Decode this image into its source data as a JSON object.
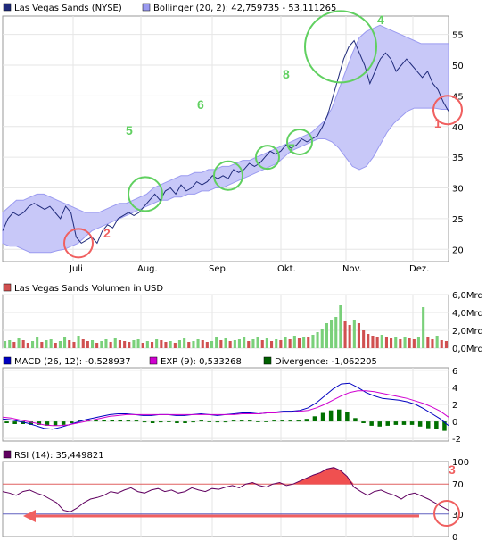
{
  "chart_data": [
    {
      "type": "line",
      "legend": [
        {
          "name": "Las Vegas Sands (NYSE)",
          "color": "#1f2a7a"
        },
        {
          "name": "Bollinger (20, 2): 42,759735 - 53,111265",
          "color": "#9a9af0"
        }
      ],
      "x_tick_labels": [
        "Juli",
        "Aug.",
        "Sep.",
        "Okt.",
        "Nov.",
        "Dez."
      ],
      "ylim": [
        18,
        58
      ],
      "y_ticks": [
        20,
        25,
        30,
        35,
        40,
        45,
        50,
        55
      ],
      "price": [
        23,
        25,
        26,
        25.5,
        26,
        27,
        27.5,
        27,
        26.5,
        27,
        26,
        25,
        27,
        26,
        22,
        21,
        21.5,
        22,
        21,
        23,
        24,
        23.5,
        25,
        25.5,
        26,
        25.5,
        26,
        27,
        28,
        29,
        28,
        29.5,
        30,
        29,
        30.5,
        29.5,
        30,
        31,
        30.5,
        31,
        32,
        31.5,
        32,
        31.5,
        33,
        32.5,
        33,
        34,
        33.5,
        34,
        35,
        36,
        35.5,
        36,
        37,
        36.5,
        37,
        38,
        37.5,
        38,
        38.5,
        40,
        42,
        45,
        48,
        51,
        53,
        54,
        52,
        50,
        47,
        49,
        51,
        52,
        51,
        49,
        50,
        51,
        50,
        49,
        48,
        49,
        47,
        46,
        44,
        42.5
      ],
      "band_upper": [
        26,
        27,
        28,
        28,
        28.5,
        29,
        29,
        28.5,
        28,
        27.5,
        27,
        26.5,
        26,
        26,
        26,
        26.5,
        27,
        27.5,
        27.5,
        28,
        28.5,
        29,
        30,
        30.5,
        31,
        31.5,
        32,
        32,
        32.5,
        32.5,
        33,
        33,
        33.5,
        33.5,
        34,
        34.5,
        34.5,
        35,
        35.5,
        36,
        36.5,
        37,
        37.5,
        38,
        38.5,
        39,
        40,
        41,
        43,
        46,
        49,
        52,
        54.5,
        55.5,
        56,
        56.5,
        56,
        55.5,
        55,
        54.5,
        54,
        53.5,
        53.5,
        53.5,
        53.5,
        53.5
      ],
      "band_lower": [
        21,
        20.5,
        20.5,
        20,
        19.5,
        19.5,
        19.5,
        19.5,
        19.8,
        20,
        20.5,
        21,
        22,
        23,
        23.5,
        24,
        24.5,
        25,
        25.5,
        26,
        26.5,
        27,
        27.5,
        28,
        28,
        28.5,
        28.5,
        29,
        29,
        29.5,
        29.5,
        30,
        30,
        30.5,
        31,
        31.5,
        32,
        32.5,
        33,
        33.5,
        34,
        35,
        36,
        36.5,
        37,
        37.5,
        38,
        38,
        37.5,
        36.5,
        35,
        33.5,
        33,
        33.5,
        35,
        37,
        39,
        40.5,
        41.5,
        42.5,
        43,
        43,
        43,
        43,
        42.8,
        42.8
      ],
      "annotations": [
        {
          "label": "1",
          "value": 42.7,
          "color": "#f06060"
        },
        {
          "label": "2",
          "value": 21,
          "color": "#f06060"
        },
        {
          "label": "4",
          "value": 53,
          "color": "#60d060"
        },
        {
          "label": "5",
          "value": 29,
          "color": "#60d060"
        },
        {
          "label": "6",
          "value": 32,
          "color": "#60d060"
        },
        {
          "label": "7",
          "value": 35,
          "color": "#60d060"
        },
        {
          "label": "8",
          "value": 37.5,
          "color": "#60d060"
        }
      ]
    },
    {
      "type": "bar",
      "legend": [
        {
          "name": "Las Vegas Sands Volumen in USD",
          "color": "#d05050"
        }
      ],
      "y_tick_labels": [
        "6,0Mrd",
        "4,0Mrd",
        "2,0Mrd",
        "0,0Mrd"
      ],
      "ylim": [
        0,
        6
      ],
      "values": [
        0.8,
        0.9,
        0.7,
        1.1,
        0.9,
        0.6,
        0.8,
        1.2,
        0.7,
        0.9,
        1.0,
        0.6,
        0.8,
        1.3,
        0.9,
        0.7,
        1.4,
        1.0,
        0.8,
        0.9,
        0.6,
        0.8,
        1.0,
        0.7,
        1.1,
        0.9,
        0.8,
        0.7,
        0.9,
        1.0,
        0.6,
        0.8,
        0.7,
        1.0,
        0.9,
        0.7,
        0.8,
        0.6,
        0.9,
        1.1,
        0.7,
        0.8,
        1.0,
        0.9,
        0.7,
        0.8,
        1.2,
        0.9,
        1.1,
        0.8,
        0.9,
        1.0,
        1.2,
        0.8,
        1.0,
        1.3,
        0.9,
        1.1,
        0.8,
        1.0,
        0.9,
        1.2,
        1.0,
        1.4,
        1.1,
        1.3,
        1.2,
        1.5,
        1.8,
        2.2,
        2.8,
        3.2,
        3.5,
        4.8,
        3.0,
        2.6,
        3.2,
        2.8,
        2.0,
        1.6,
        1.4,
        1.3,
        1.5,
        1.2,
        1.1,
        1.3,
        1.0,
        1.2,
        1.1,
        1.0,
        1.3,
        4.6,
        1.2,
        1.0,
        1.4,
        0.9,
        0.8
      ]
    },
    {
      "type": "line",
      "legend": [
        {
          "name": "MACD (26, 12): -0,528937",
          "color": "#0000c0"
        },
        {
          "name": "EXP (9): 0,533268",
          "color": "#d000d0"
        },
        {
          "name": "Divergence: -1,062205",
          "color": "#006000"
        }
      ],
      "y_ticks": [
        6,
        4,
        2,
        0,
        -2
      ],
      "ylim": [
        -2.3,
        6.3
      ],
      "macd": [
        0.3,
        0.2,
        0.0,
        -0.2,
        -0.5,
        -0.8,
        -0.9,
        -0.7,
        -0.4,
        -0.1,
        0.2,
        0.4,
        0.6,
        0.8,
        0.9,
        0.9,
        0.8,
        0.7,
        0.7,
        0.8,
        0.8,
        0.7,
        0.7,
        0.8,
        0.9,
        0.8,
        0.7,
        0.8,
        0.9,
        1.0,
        1.0,
        0.9,
        1.0,
        1.1,
        1.2,
        1.2,
        1.3,
        1.6,
        2.2,
        3.0,
        3.8,
        4.4,
        4.5,
        4.0,
        3.4,
        3.0,
        2.7,
        2.6,
        2.5,
        2.3,
        2.0,
        1.5,
        0.9,
        0.3,
        -0.5
      ],
      "exp": [
        0.5,
        0.4,
        0.2,
        0.0,
        -0.2,
        -0.4,
        -0.5,
        -0.5,
        -0.4,
        -0.2,
        0.0,
        0.2,
        0.4,
        0.6,
        0.7,
        0.8,
        0.8,
        0.8,
        0.8,
        0.8,
        0.8,
        0.8,
        0.8,
        0.8,
        0.8,
        0.8,
        0.8,
        0.8,
        0.8,
        0.9,
        0.9,
        0.9,
        1.0,
        1.0,
        1.1,
        1.1,
        1.2,
        1.3,
        1.6,
        2.0,
        2.5,
        3.0,
        3.4,
        3.6,
        3.6,
        3.5,
        3.3,
        3.1,
        2.9,
        2.7,
        2.4,
        2.1,
        1.7,
        1.2,
        0.5
      ],
      "divergence": [
        -0.2,
        -0.3,
        -0.3,
        -0.4,
        -0.4,
        -0.5,
        -0.5,
        -0.4,
        -0.2,
        0.1,
        0.2,
        0.2,
        0.2,
        0.2,
        0.2,
        0.1,
        0.1,
        -0.1,
        -0.2,
        -0.1,
        0.0,
        -0.2,
        -0.2,
        -0.1,
        0.1,
        0.0,
        -0.1,
        -0.1,
        0.1,
        0.1,
        0.1,
        0.0,
        0.0,
        0.1,
        0.1,
        0.1,
        0.1,
        0.3,
        0.6,
        1.0,
        1.3,
        1.4,
        1.1,
        0.4,
        -0.2,
        -0.5,
        -0.6,
        -0.5,
        -0.4,
        -0.4,
        -0.4,
        -0.6,
        -0.8,
        -0.9,
        -1.1
      ]
    },
    {
      "type": "line",
      "legend": [
        {
          "name": "RSI (14): 35,449821",
          "color": "#600060"
        }
      ],
      "y_ticks": [
        100,
        70,
        30,
        0
      ],
      "ylim": [
        0,
        100
      ],
      "overbought": 70,
      "oversold": 30,
      "annotation_label": "3",
      "values": [
        60,
        58,
        55,
        60,
        62,
        58,
        55,
        50,
        45,
        35,
        33,
        38,
        45,
        50,
        52,
        55,
        60,
        58,
        62,
        65,
        60,
        58,
        62,
        64,
        60,
        62,
        58,
        60,
        65,
        62,
        60,
        64,
        63,
        66,
        68,
        65,
        70,
        72,
        68,
        66,
        70,
        72,
        68,
        70,
        74,
        78,
        82,
        85,
        90,
        92,
        88,
        80,
        66,
        60,
        55,
        60,
        62,
        58,
        55,
        50,
        56,
        58,
        54,
        50,
        45,
        40,
        35
      ]
    }
  ]
}
